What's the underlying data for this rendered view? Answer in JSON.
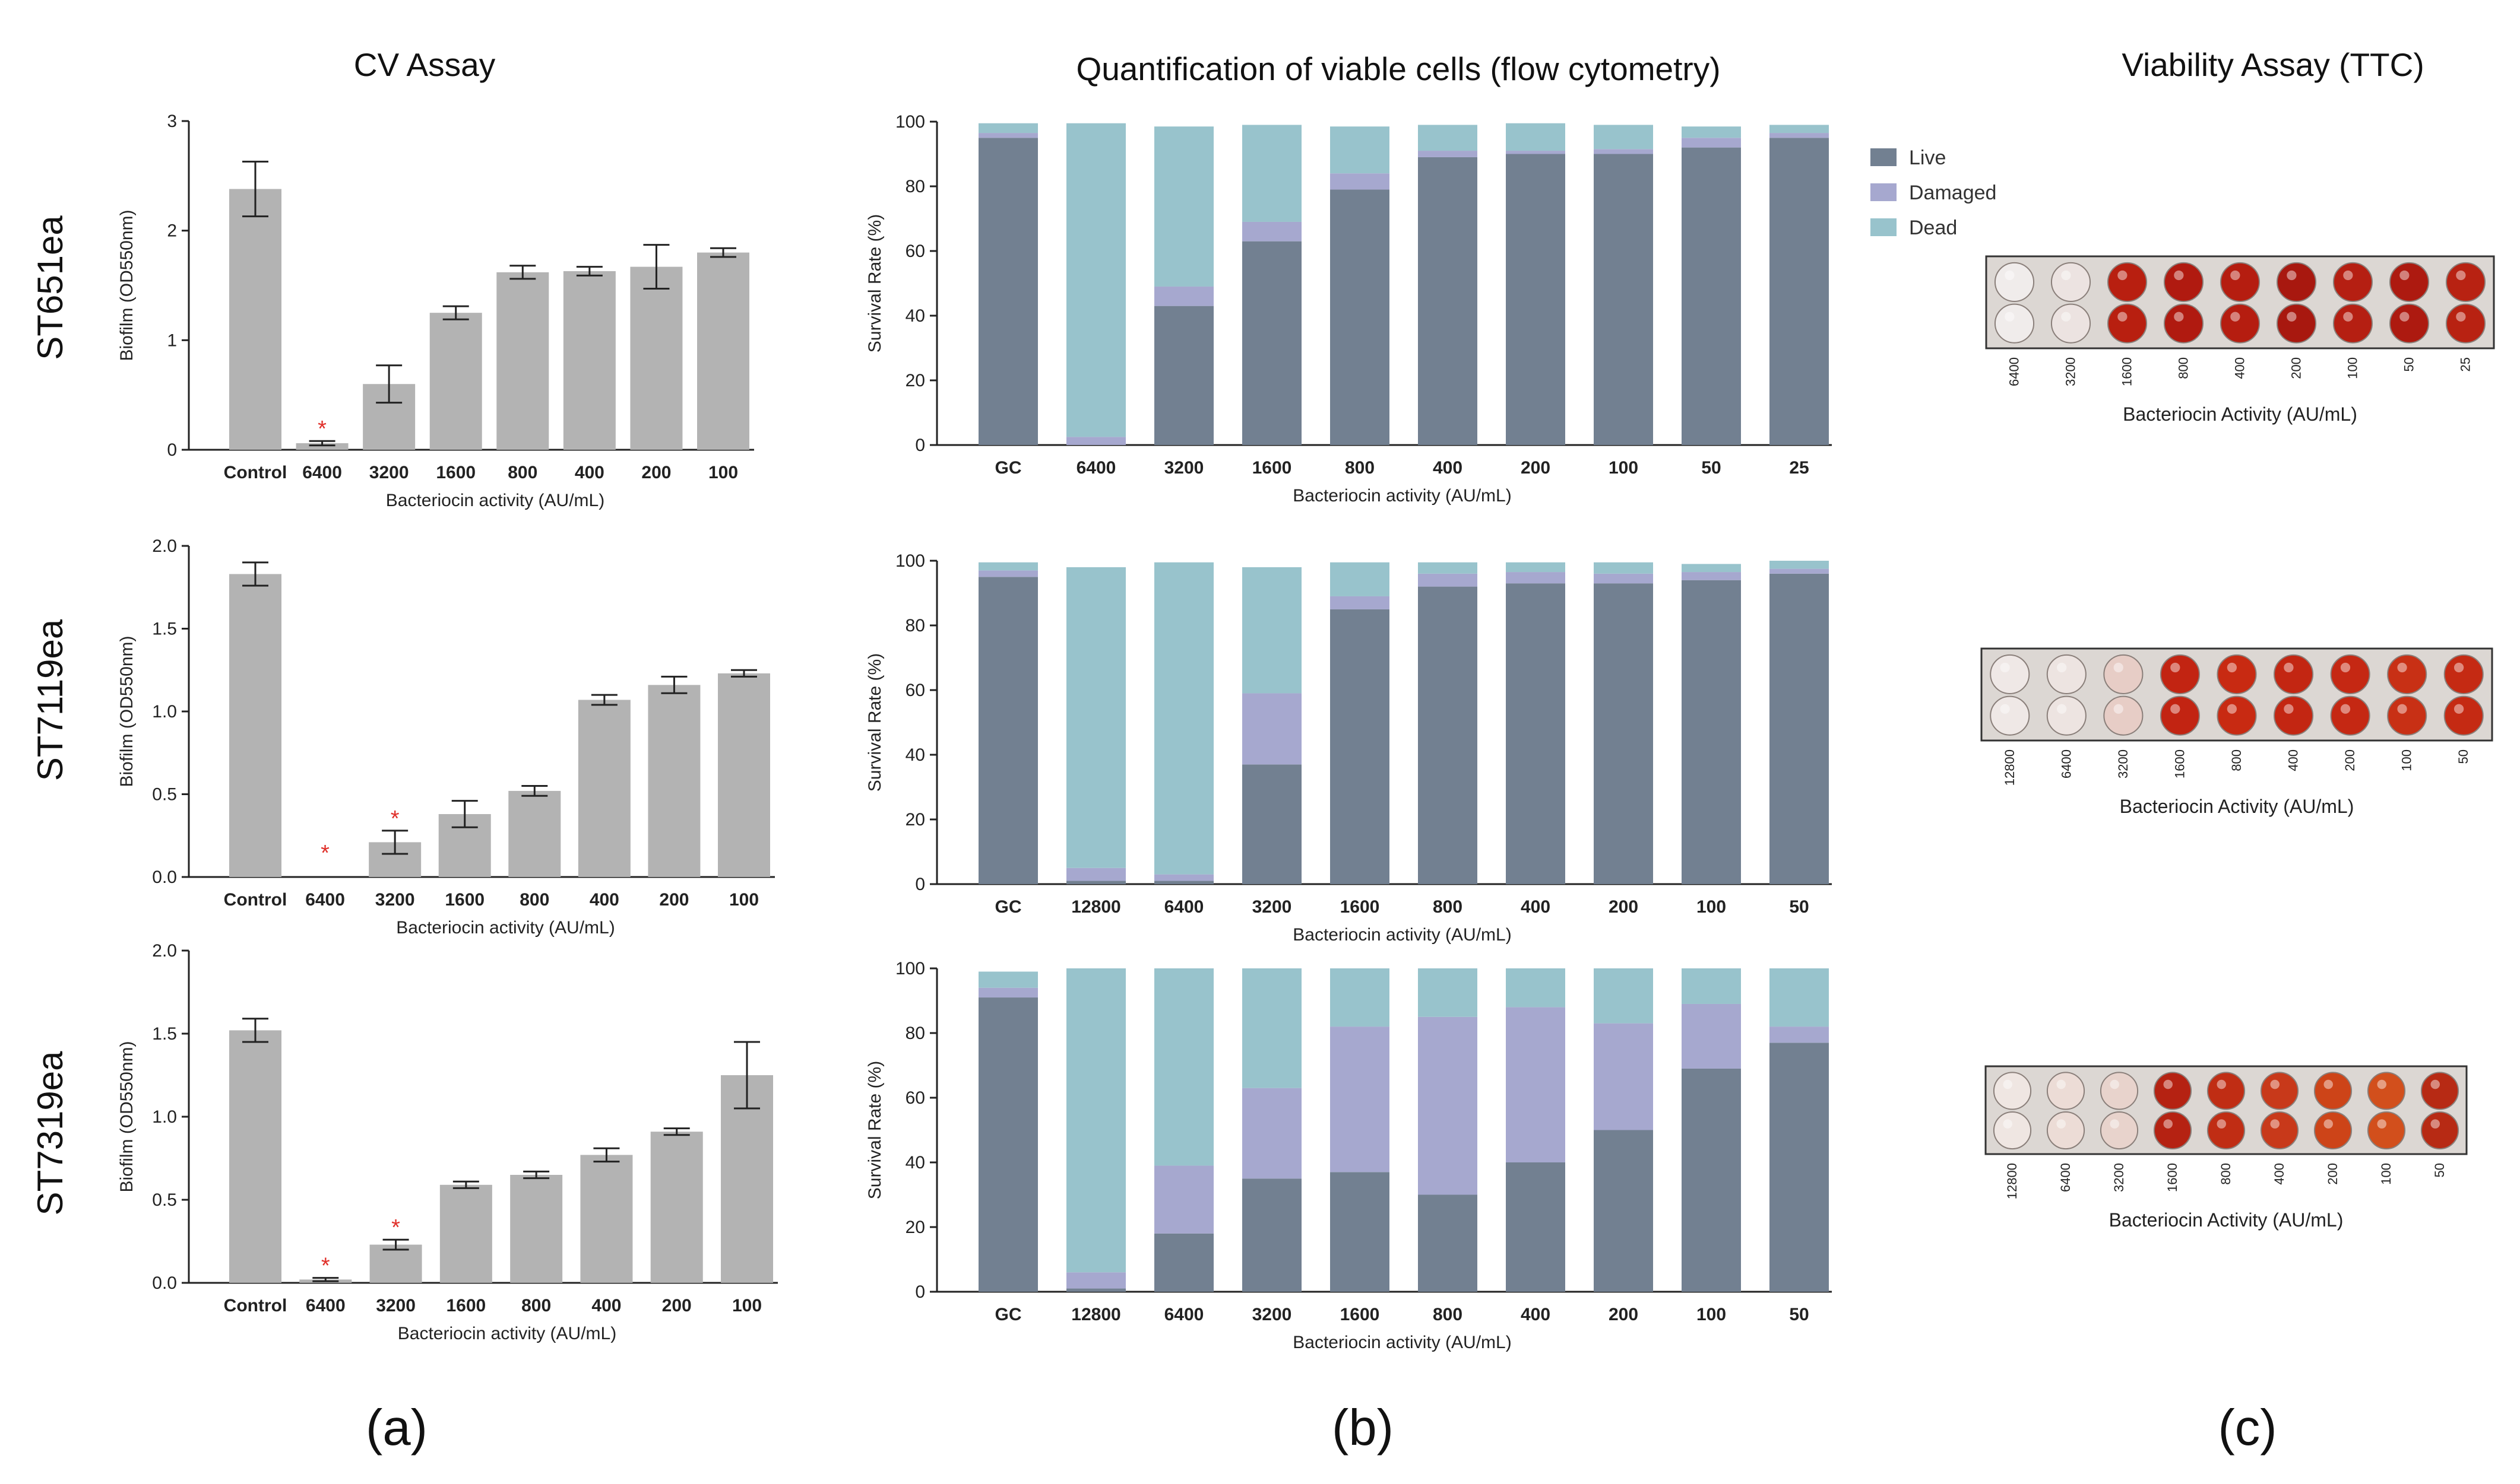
{
  "column_titles": {
    "a": "CV Assay",
    "b": "Quantification of viable cells (flow cytometry)",
    "c": "Viability Assay (TTC)"
  },
  "panel_letters": [
    "(a)",
    "(b)",
    "(c)"
  ],
  "strains": [
    "ST651ea",
    "ST7119ea",
    "ST7319ea"
  ],
  "colors": {
    "bar_gray": "#b3b3b3",
    "live": "#728091",
    "damaged": "#a6a8cf",
    "dead": "#98c3cc",
    "star": "#e0302a",
    "axis": "#222222"
  },
  "legend": [
    "Live",
    "Damaged",
    "Dead"
  ],
  "chart_data": [
    {
      "id": "cv-st651ea",
      "type": "bar",
      "strain": "ST651ea",
      "title": "CV Assay",
      "categories": [
        "Control",
        "6400",
        "3200",
        "1600",
        "800",
        "400",
        "200",
        "100"
      ],
      "values": [
        2.38,
        0.06,
        0.6,
        1.25,
        1.62,
        1.63,
        1.67,
        1.8
      ],
      "errors": [
        0.25,
        0.02,
        0.17,
        0.06,
        0.06,
        0.04,
        0.2,
        0.04
      ],
      "significant": [
        false,
        true,
        false,
        false,
        false,
        false,
        false,
        false
      ],
      "xlabel": "Bacteriocin activity (AU/mL)",
      "ylabel": "Biofilm (OD550nm)",
      "ylim": [
        0,
        3
      ],
      "yticks": [
        {
          "v": 0,
          "label": "0"
        },
        {
          "v": 1,
          "label": "1"
        },
        {
          "v": 2,
          "label": "2"
        },
        {
          "v": 3,
          "label": "3"
        }
      ]
    },
    {
      "id": "cv-st7119ea",
      "type": "bar",
      "strain": "ST7119ea",
      "categories": [
        "Control",
        "6400",
        "3200",
        "1600",
        "800",
        "400",
        "200",
        "100"
      ],
      "values": [
        1.83,
        0.0,
        0.21,
        0.38,
        0.52,
        1.07,
        1.16,
        1.23
      ],
      "errors": [
        0.07,
        0.0,
        0.07,
        0.08,
        0.03,
        0.03,
        0.05,
        0.02
      ],
      "significant": [
        false,
        true,
        true,
        false,
        false,
        false,
        false,
        false
      ],
      "xlabel": "Bacteriocin activity (AU/mL)",
      "ylabel": "Biofilm (OD550nm)",
      "ylim": [
        0,
        2
      ],
      "yticks": [
        {
          "v": 0,
          "label": "0.0"
        },
        {
          "v": 0.5,
          "label": "0.5"
        },
        {
          "v": 1,
          "label": "1.0"
        },
        {
          "v": 1.5,
          "label": "1.5"
        },
        {
          "v": 2,
          "label": "2.0"
        }
      ]
    },
    {
      "id": "cv-st7319ea",
      "type": "bar",
      "strain": "ST7319ea",
      "categories": [
        "Control",
        "6400",
        "3200",
        "1600",
        "800",
        "400",
        "200",
        "100"
      ],
      "values": [
        1.52,
        0.02,
        0.23,
        0.59,
        0.65,
        0.77,
        0.91,
        1.25
      ],
      "errors": [
        0.07,
        0.01,
        0.03,
        0.02,
        0.02,
        0.04,
        0.02,
        0.2
      ],
      "significant": [
        false,
        true,
        true,
        false,
        false,
        false,
        false,
        false
      ],
      "xlabel": "Bacteriocin activity (AU/mL)",
      "ylabel": "Biofilm (OD550nm)",
      "ylim": [
        0,
        2
      ],
      "yticks": [
        {
          "v": 0,
          "label": "0.0"
        },
        {
          "v": 0.5,
          "label": "0.5"
        },
        {
          "v": 1,
          "label": "1.0"
        },
        {
          "v": 1.5,
          "label": "1.5"
        },
        {
          "v": 2,
          "label": "2.0"
        }
      ]
    },
    {
      "id": "flow-st651ea",
      "type": "bar",
      "stacked": true,
      "strain": "ST651ea",
      "title": "Quantification of viable cells (flow cytometry)",
      "categories": [
        "GC",
        "6400",
        "3200",
        "1600",
        "800",
        "400",
        "200",
        "100",
        "50",
        "25"
      ],
      "series": [
        {
          "name": "Live",
          "values": [
            95,
            0,
            43,
            63,
            79,
            89,
            90,
            90,
            92,
            95
          ]
        },
        {
          "name": "Damaged",
          "values": [
            1.5,
            2.5,
            6,
            6,
            5,
            2,
            1,
            1.5,
            3,
            1.5
          ]
        },
        {
          "name": "Dead",
          "values": [
            3,
            97,
            49.5,
            30,
            14.5,
            8,
            8.5,
            7.5,
            3.5,
            2.5
          ]
        }
      ],
      "xlabel": "Bacteriocin activity (AU/mL)",
      "ylabel": "Survival Rate (%)",
      "ylim": [
        0,
        100
      ],
      "yticks": [
        {
          "v": 0,
          "label": "0"
        },
        {
          "v": 20,
          "label": "20"
        },
        {
          "v": 40,
          "label": "40"
        },
        {
          "v": 60,
          "label": "60"
        },
        {
          "v": 80,
          "label": "80"
        },
        {
          "v": 100,
          "label": "100"
        }
      ],
      "legend": "right"
    },
    {
      "id": "flow-st7119ea",
      "type": "bar",
      "stacked": true,
      "strain": "ST7119ea",
      "categories": [
        "GC",
        "12800",
        "6400",
        "3200",
        "1600",
        "800",
        "400",
        "200",
        "100",
        "50"
      ],
      "series": [
        {
          "name": "Live",
          "values": [
            95,
            1,
            1,
            37,
            85,
            92,
            93,
            93,
            94,
            96
          ]
        },
        {
          "name": "Damaged",
          "values": [
            2,
            4,
            2,
            22,
            4,
            4,
            3.5,
            3,
            2.5,
            1.5
          ]
        },
        {
          "name": "Dead",
          "values": [
            2.5,
            93,
            96.5,
            39,
            10.5,
            3.5,
            3,
            3.5,
            2.5,
            2.5
          ]
        }
      ],
      "xlabel": "Bacteriocin activity (AU/mL)",
      "ylabel": "Survival Rate (%)",
      "ylim": [
        0,
        100
      ],
      "yticks": [
        {
          "v": 0,
          "label": "0"
        },
        {
          "v": 20,
          "label": "20"
        },
        {
          "v": 40,
          "label": "40"
        },
        {
          "v": 60,
          "label": "60"
        },
        {
          "v": 80,
          "label": "80"
        },
        {
          "v": 100,
          "label": "100"
        }
      ]
    },
    {
      "id": "flow-st7319ea",
      "type": "bar",
      "stacked": true,
      "strain": "ST7319ea",
      "categories": [
        "GC",
        "12800",
        "6400",
        "3200",
        "1600",
        "800",
        "400",
        "200",
        "100",
        "50"
      ],
      "series": [
        {
          "name": "Live",
          "values": [
            91,
            1,
            18,
            35,
            37,
            30,
            40,
            50,
            69,
            77
          ]
        },
        {
          "name": "Damaged",
          "values": [
            3,
            5,
            21,
            28,
            45,
            55,
            48,
            33,
            20,
            5
          ]
        },
        {
          "name": "Dead",
          "values": [
            5,
            94,
            61,
            37,
            18,
            15,
            12,
            17,
            11,
            18
          ]
        }
      ],
      "xlabel": "Bacteriocin activity (AU/mL)",
      "ylabel": "Survival Rate (%)",
      "ylim": [
        0,
        100
      ],
      "yticks": [
        {
          "v": 0,
          "label": "0"
        },
        {
          "v": 20,
          "label": "20"
        },
        {
          "v": 40,
          "label": "40"
        },
        {
          "v": 60,
          "label": "60"
        },
        {
          "v": 80,
          "label": "80"
        },
        {
          "v": 100,
          "label": "100"
        }
      ]
    }
  ],
  "plates": [
    {
      "strain": "ST651ea",
      "xlabel": "Bacteriocin Activity (AU/mL)",
      "labels": [
        "6400",
        "3200",
        "1600",
        "800",
        "400",
        "200",
        "100",
        "50",
        "25"
      ],
      "well_colors": [
        "#f0eceb",
        "#ece3e1",
        "#b81f10",
        "#b01a10",
        "#b51d10",
        "#a8180f",
        "#b51f12",
        "#ad1a10",
        "#b82212"
      ]
    },
    {
      "strain": "ST7119ea",
      "xlabel": "Bacteriocin Activity (AU/mL)",
      "labels": [
        "12800",
        "6400",
        "3200",
        "1600",
        "800",
        "400",
        "200",
        "100",
        "50"
      ],
      "well_colors": [
        "#efe8e6",
        "#ede4e1",
        "#e7cdc6",
        "#c22412",
        "#c82a12",
        "#c32612",
        "#c52813",
        "#c83015",
        "#c52a13"
      ]
    },
    {
      "strain": "ST7319ea",
      "xlabel": "Bacteriocin Activity (AU/mL)",
      "labels": [
        "12800",
        "6400",
        "3200",
        "1600",
        "800",
        "400",
        "200",
        "100",
        "50"
      ],
      "well_colors": [
        "#efe6e2",
        "#ecdcd6",
        "#e8d3cc",
        "#b52212",
        "#c02d14",
        "#c8391a",
        "#cd4418",
        "#d24f1c",
        "#b72a14"
      ]
    }
  ]
}
